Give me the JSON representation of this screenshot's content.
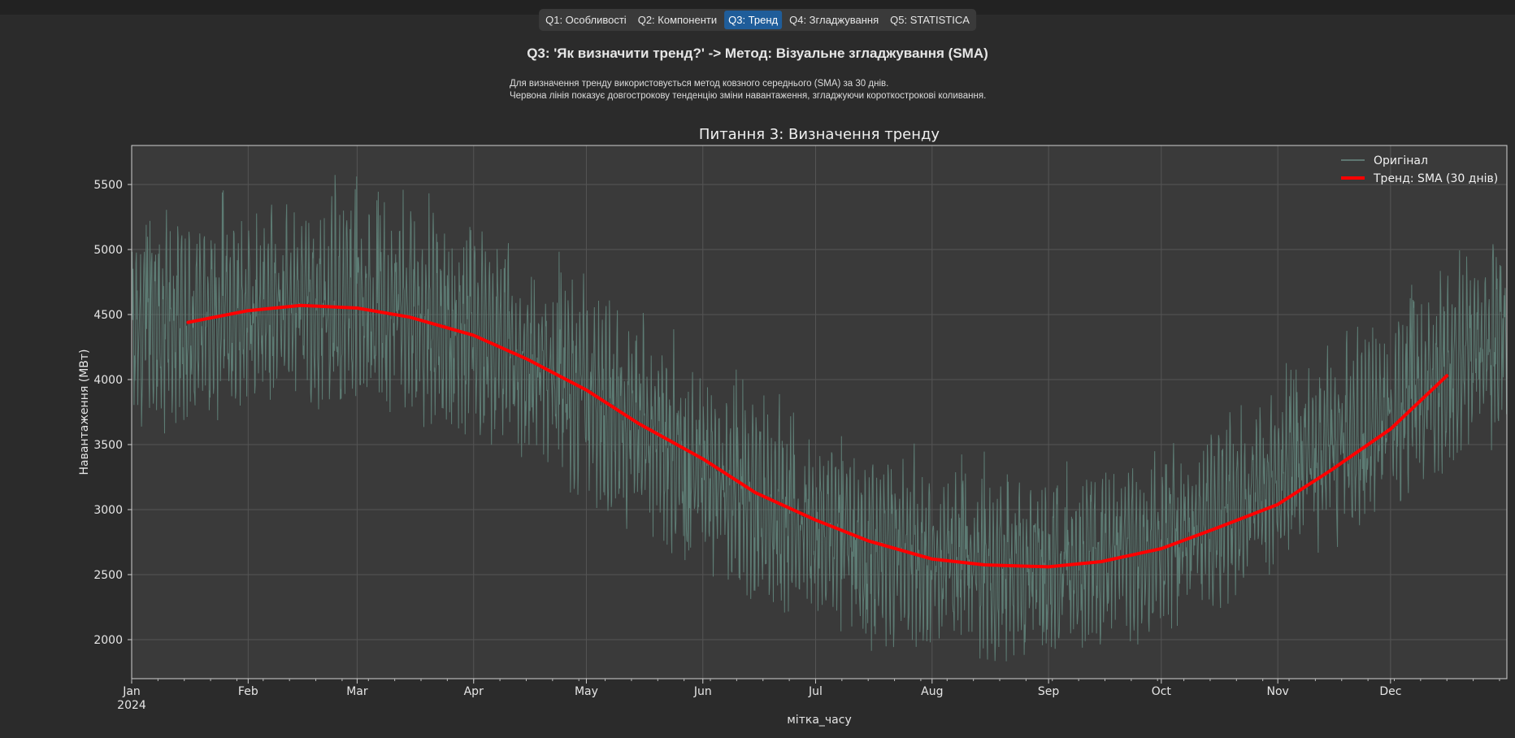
{
  "tabs": [
    {
      "label": "Q1: Особливості",
      "active": false
    },
    {
      "label": "Q2: Компоненти",
      "active": false
    },
    {
      "label": "Q3: Тренд",
      "active": true
    },
    {
      "label": "Q4: Згладжування",
      "active": false
    },
    {
      "label": "Q5: STATISTICA",
      "active": false
    }
  ],
  "heading": "Q3: 'Як визначити тренд?' -> Метод: Візуальне згладжування (SMA)",
  "description": {
    "line1": "Для визначення тренду використовується метод ковзного середнього (SMA) за 30 днів.",
    "line2": "Червона лінія показує довгострокову тенденцію зміни навантаження, згладжуючи короткострокові коливання."
  },
  "chart_data": {
    "type": "line",
    "title": "Питання 3: Визначення тренду",
    "xlabel": "мітка_часу",
    "ylabel": "Навантаження (МВт)",
    "xlim": [
      "2024-01-01",
      "2024-12-31"
    ],
    "ylim": [
      1700,
      5800
    ],
    "yticks": [
      2000,
      2500,
      3000,
      3500,
      4000,
      4500,
      5000,
      5500
    ],
    "xticks": [
      {
        "date": "2024-01-01",
        "label": "Jan",
        "sublabel": "2024"
      },
      {
        "date": "2024-02-01",
        "label": "Feb"
      },
      {
        "date": "2024-03-01",
        "label": "Mar"
      },
      {
        "date": "2024-04-01",
        "label": "Apr"
      },
      {
        "date": "2024-05-01",
        "label": "May"
      },
      {
        "date": "2024-06-01",
        "label": "Jun"
      },
      {
        "date": "2024-07-01",
        "label": "Jul"
      },
      {
        "date": "2024-08-01",
        "label": "Aug"
      },
      {
        "date": "2024-09-01",
        "label": "Sep"
      },
      {
        "date": "2024-10-01",
        "label": "Oct"
      },
      {
        "date": "2024-11-01",
        "label": "Nov"
      },
      {
        "date": "2024-12-01",
        "label": "Dec"
      }
    ],
    "grid": true,
    "legend_position": "top-right",
    "series": [
      {
        "name": "Оригінал",
        "color": "#5f7f77",
        "description": "hourly load, range approx 1900–5600",
        "envelope": {
          "x": [
            "2024-01-01",
            "2024-01-15",
            "2024-02-01",
            "2024-02-15",
            "2024-03-01",
            "2024-03-15",
            "2024-04-01",
            "2024-04-15",
            "2024-05-01",
            "2024-05-15",
            "2024-06-01",
            "2024-06-15",
            "2024-07-01",
            "2024-07-15",
            "2024-08-01",
            "2024-08-15",
            "2024-09-01",
            "2024-09-15",
            "2024-10-01",
            "2024-10-15",
            "2024-11-01",
            "2024-11-15",
            "2024-12-01",
            "2024-12-15",
            "2024-12-31"
          ],
          "center": [
            4300,
            4420,
            4520,
            4570,
            4560,
            4500,
            4350,
            4150,
            3900,
            3620,
            3300,
            3050,
            2850,
            2700,
            2600,
            2560,
            2580,
            2640,
            2780,
            2950,
            3200,
            3450,
            3750,
            4050,
            4350
          ],
          "high": [
            5050,
            5200,
            5300,
            5350,
            5400,
            5300,
            5150,
            4950,
            4700,
            4400,
            4050,
            3800,
            3550,
            3400,
            3300,
            3250,
            3250,
            3300,
            3450,
            3650,
            3900,
            4150,
            4450,
            4800,
            5000
          ],
          "low": [
            3650,
            3750,
            3850,
            3900,
            3900,
            3850,
            3700,
            3500,
            3250,
            2950,
            2650,
            2400,
            2200,
            2050,
            1980,
            1950,
            1980,
            2050,
            2150,
            2350,
            2550,
            2800,
            3100,
            3350,
            3650
          ]
        }
      },
      {
        "name": "Тренд: SMA (30 днів)",
        "color": "#ff0000",
        "x": [
          "2024-01-16",
          "2024-02-01",
          "2024-02-15",
          "2024-03-01",
          "2024-03-15",
          "2024-04-01",
          "2024-04-15",
          "2024-05-01",
          "2024-05-15",
          "2024-06-01",
          "2024-06-15",
          "2024-07-01",
          "2024-07-15",
          "2024-08-01",
          "2024-08-15",
          "2024-09-01",
          "2024-09-15",
          "2024-10-01",
          "2024-10-15",
          "2024-11-01",
          "2024-11-15",
          "2024-12-01",
          "2024-12-16"
        ],
        "y": [
          4440,
          4530,
          4570,
          4550,
          4480,
          4340,
          4160,
          3920,
          3660,
          3390,
          3130,
          2920,
          2760,
          2620,
          2575,
          2560,
          2600,
          2700,
          2850,
          3040,
          3300,
          3620,
          4030
        ]
      }
    ]
  }
}
